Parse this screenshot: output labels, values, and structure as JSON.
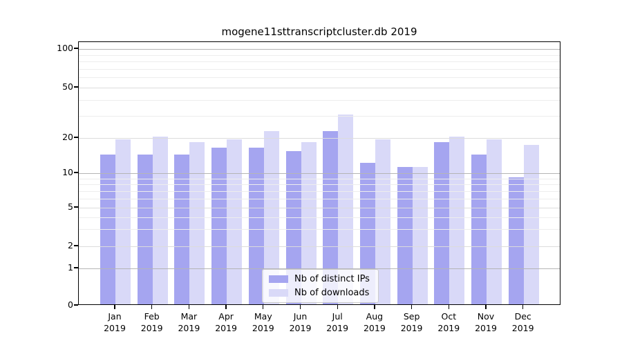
{
  "chart_data": {
    "type": "bar",
    "title": "mogene11sttranscriptcluster.db 2019",
    "categories": [
      "Jan",
      "Feb",
      "Mar",
      "Apr",
      "May",
      "Jun",
      "Jul",
      "Aug",
      "Sep",
      "Oct",
      "Nov",
      "Dec"
    ],
    "year_label": "2019",
    "series": [
      {
        "name": "Nb of distinct IPs",
        "color": "#a5a5f0",
        "values": [
          14,
          14,
          14,
          16,
          16,
          15,
          22,
          12,
          11,
          18,
          14,
          9
        ]
      },
      {
        "name": "Nb of downloads",
        "color": "#d9d9f8",
        "values": [
          19,
          20,
          18,
          19,
          22,
          18,
          30,
          19,
          11,
          20,
          19,
          17
        ]
      }
    ],
    "yticks": [
      0,
      1,
      2,
      5,
      10,
      20,
      50,
      100
    ],
    "ylim": [
      0,
      110
    ],
    "scale": "log-like (0,1,2,5,10,20,50,100)",
    "grid": "on",
    "legend_position": "bottom-center",
    "xlabel": "",
    "ylabel": ""
  },
  "colors": {
    "major_grid": "#b5b5b5",
    "medium_grid": "#dcdcdc",
    "minor_grid": "#ededed",
    "axis": "#000000",
    "legend_border": "#cccccc"
  }
}
